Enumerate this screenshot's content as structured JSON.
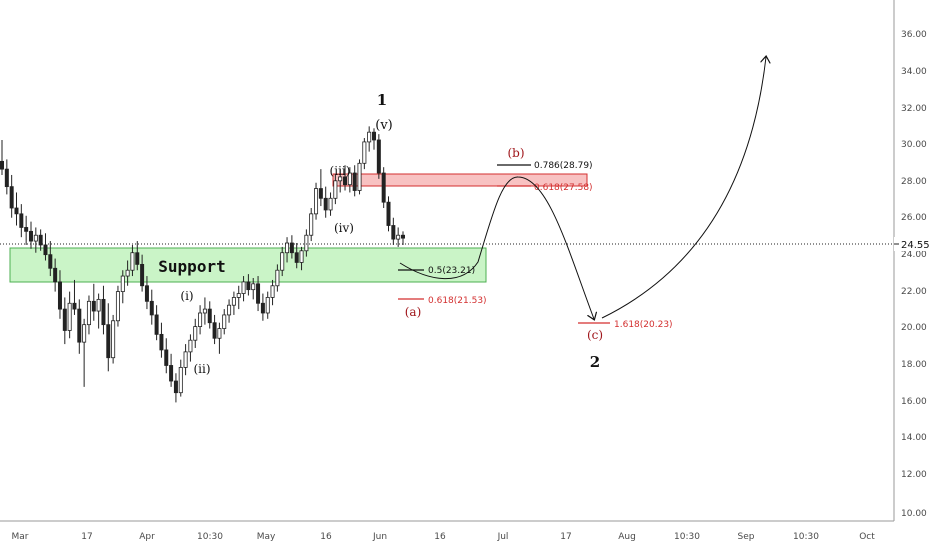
{
  "chart_data": {
    "type": "candlestick",
    "price_axis": {
      "ticks": [
        "36.00",
        "34.00",
        "32.00",
        "30.00",
        "28.00",
        "26.00",
        "24.00",
        "22.00",
        "20.00",
        "18.00",
        "16.00",
        "14.00",
        "12.00",
        "10.00"
      ],
      "ylim": [
        10,
        36.8
      ]
    },
    "time_axis": {
      "ticks": [
        "Mar",
        "17",
        "Apr",
        "10:30",
        "May",
        "16",
        "Jun",
        "16",
        "Jul",
        "17",
        "Aug",
        "10:30",
        "Sep",
        "10:30",
        "Oct"
      ]
    },
    "last_price": {
      "value": 24.55,
      "label": "24.55"
    },
    "support_zone": {
      "label": "Support",
      "from": 22.5,
      "to": 24.2
    },
    "resistance_zone": {
      "from": 27.7,
      "to": 28.35
    },
    "wave_labels": [
      "1",
      "(v)",
      "(iii)",
      "(iv)",
      "(i)",
      "(ii)",
      "(a)",
      "(b)",
      "(c)",
      "2"
    ],
    "fib_levels": [
      {
        "label": "0.786(28.79)",
        "value": 28.79,
        "color": "#111111"
      },
      {
        "label": "0.618(27.58)",
        "value": 27.58,
        "color": "#d32f2f"
      },
      {
        "label": "0.5(23.21)",
        "value": 23.21,
        "color": "#111111"
      },
      {
        "label": "0.618(21.53)",
        "value": 21.53,
        "color": "#d32f2f"
      },
      {
        "label": "1.618(20.23)",
        "value": 20.23,
        "color": "#d32f2f"
      }
    ],
    "candles": [
      {
        "o": 28.5,
        "h": 29.6,
        "l": 27.8,
        "c": 28.1
      },
      {
        "o": 28.1,
        "h": 28.6,
        "l": 26.8,
        "c": 27.2
      },
      {
        "o": 27.2,
        "h": 27.8,
        "l": 25.6,
        "c": 26.1
      },
      {
        "o": 26.1,
        "h": 26.9,
        "l": 25.2,
        "c": 25.8
      },
      {
        "o": 25.8,
        "h": 26.3,
        "l": 24.6,
        "c": 25.1
      },
      {
        "o": 25.1,
        "h": 25.7,
        "l": 24.2,
        "c": 24.9
      },
      {
        "o": 24.9,
        "h": 25.4,
        "l": 24.0,
        "c": 24.4
      },
      {
        "o": 24.4,
        "h": 25.1,
        "l": 23.8,
        "c": 24.7
      },
      {
        "o": 24.7,
        "h": 25.0,
        "l": 23.9,
        "c": 24.2
      },
      {
        "o": 24.2,
        "h": 24.8,
        "l": 23.4,
        "c": 23.7
      },
      {
        "o": 23.7,
        "h": 24.4,
        "l": 22.6,
        "c": 23.0
      },
      {
        "o": 23.0,
        "h": 23.5,
        "l": 21.8,
        "c": 22.3
      },
      {
        "o": 22.3,
        "h": 22.9,
        "l": 20.4,
        "c": 20.9
      },
      {
        "o": 20.9,
        "h": 21.5,
        "l": 19.1,
        "c": 19.8
      },
      {
        "o": 19.8,
        "h": 21.8,
        "l": 19.4,
        "c": 21.2
      },
      {
        "o": 21.2,
        "h": 22.4,
        "l": 20.6,
        "c": 20.9
      },
      {
        "o": 20.9,
        "h": 21.4,
        "l": 18.6,
        "c": 19.2
      },
      {
        "o": 19.2,
        "h": 20.4,
        "l": 16.9,
        "c": 20.1
      },
      {
        "o": 20.1,
        "h": 21.6,
        "l": 19.6,
        "c": 21.3
      },
      {
        "o": 21.3,
        "h": 22.2,
        "l": 20.3,
        "c": 20.8
      },
      {
        "o": 20.8,
        "h": 21.7,
        "l": 19.9,
        "c": 21.4
      },
      {
        "o": 21.4,
        "h": 22.1,
        "l": 19.6,
        "c": 20.1
      },
      {
        "o": 20.1,
        "h": 21.2,
        "l": 17.7,
        "c": 18.4
      },
      {
        "o": 18.4,
        "h": 20.6,
        "l": 18.1,
        "c": 20.3
      },
      {
        "o": 20.3,
        "h": 22.1,
        "l": 20.0,
        "c": 21.8
      },
      {
        "o": 21.8,
        "h": 22.9,
        "l": 21.2,
        "c": 22.6
      },
      {
        "o": 22.6,
        "h": 23.4,
        "l": 22.1,
        "c": 22.9
      },
      {
        "o": 22.9,
        "h": 24.2,
        "l": 22.6,
        "c": 23.8
      },
      {
        "o": 23.8,
        "h": 24.4,
        "l": 22.9,
        "c": 23.2
      },
      {
        "o": 23.2,
        "h": 23.7,
        "l": 21.8,
        "c": 22.1
      },
      {
        "o": 22.1,
        "h": 22.6,
        "l": 20.9,
        "c": 21.3
      },
      {
        "o": 21.3,
        "h": 21.9,
        "l": 20.1,
        "c": 20.6
      },
      {
        "o": 20.6,
        "h": 21.1,
        "l": 19.3,
        "c": 19.6
      },
      {
        "o": 19.6,
        "h": 20.2,
        "l": 18.4,
        "c": 18.8
      },
      {
        "o": 18.8,
        "h": 19.4,
        "l": 17.6,
        "c": 18.0
      },
      {
        "o": 18.0,
        "h": 18.6,
        "l": 16.9,
        "c": 17.2
      },
      {
        "o": 17.2,
        "h": 17.6,
        "l": 16.1,
        "c": 16.6
      },
      {
        "o": 16.6,
        "h": 18.3,
        "l": 16.4,
        "c": 17.9
      },
      {
        "o": 17.9,
        "h": 19.1,
        "l": 17.5,
        "c": 18.7
      },
      {
        "o": 18.7,
        "h": 19.6,
        "l": 18.2,
        "c": 19.3
      },
      {
        "o": 19.3,
        "h": 20.4,
        "l": 18.9,
        "c": 20.0
      },
      {
        "o": 20.0,
        "h": 21.1,
        "l": 19.6,
        "c": 20.7
      },
      {
        "o": 20.7,
        "h": 21.5,
        "l": 20.1,
        "c": 20.9
      },
      {
        "o": 20.9,
        "h": 21.3,
        "l": 19.9,
        "c": 20.2
      },
      {
        "o": 20.2,
        "h": 20.6,
        "l": 19.1,
        "c": 19.4
      },
      {
        "o": 19.4,
        "h": 20.2,
        "l": 18.6,
        "c": 19.9
      },
      {
        "o": 19.9,
        "h": 20.9,
        "l": 19.6,
        "c": 20.6
      },
      {
        "o": 20.6,
        "h": 21.4,
        "l": 20.2,
        "c": 21.1
      },
      {
        "o": 21.1,
        "h": 21.8,
        "l": 20.6,
        "c": 21.5
      },
      {
        "o": 21.5,
        "h": 22.1,
        "l": 20.9,
        "c": 21.7
      },
      {
        "o": 21.7,
        "h": 22.6,
        "l": 21.3,
        "c": 22.3
      },
      {
        "o": 22.3,
        "h": 22.7,
        "l": 21.6,
        "c": 21.9
      },
      {
        "o": 21.9,
        "h": 22.5,
        "l": 21.4,
        "c": 22.2
      },
      {
        "o": 22.2,
        "h": 22.6,
        "l": 20.8,
        "c": 21.2
      },
      {
        "o": 21.2,
        "h": 21.7,
        "l": 20.3,
        "c": 20.7
      },
      {
        "o": 20.7,
        "h": 21.8,
        "l": 20.4,
        "c": 21.5
      },
      {
        "o": 21.5,
        "h": 22.4,
        "l": 21.1,
        "c": 22.1
      },
      {
        "o": 22.1,
        "h": 23.2,
        "l": 21.8,
        "c": 22.9
      },
      {
        "o": 22.9,
        "h": 24.1,
        "l": 22.6,
        "c": 23.8
      },
      {
        "o": 23.8,
        "h": 24.6,
        "l": 23.3,
        "c": 24.3
      },
      {
        "o": 24.3,
        "h": 24.7,
        "l": 23.5,
        "c": 23.8
      },
      {
        "o": 23.8,
        "h": 24.3,
        "l": 23.0,
        "c": 23.3
      },
      {
        "o": 23.3,
        "h": 24.1,
        "l": 22.9,
        "c": 23.9
      },
      {
        "o": 23.9,
        "h": 25.0,
        "l": 23.6,
        "c": 24.7
      },
      {
        "o": 24.7,
        "h": 26.1,
        "l": 24.4,
        "c": 25.8
      },
      {
        "o": 25.8,
        "h": 27.4,
        "l": 25.5,
        "c": 27.1
      },
      {
        "o": 27.1,
        "h": 28.1,
        "l": 26.2,
        "c": 26.6
      },
      {
        "o": 26.6,
        "h": 27.2,
        "l": 25.6,
        "c": 26.0
      },
      {
        "o": 26.0,
        "h": 26.9,
        "l": 25.7,
        "c": 26.6
      },
      {
        "o": 26.6,
        "h": 27.8,
        "l": 26.3,
        "c": 27.5
      },
      {
        "o": 27.5,
        "h": 28.1,
        "l": 26.9,
        "c": 27.7
      },
      {
        "o": 27.7,
        "h": 28.3,
        "l": 27.0,
        "c": 27.3
      },
      {
        "o": 27.3,
        "h": 28.2,
        "l": 26.9,
        "c": 27.9
      },
      {
        "o": 27.9,
        "h": 28.3,
        "l": 26.7,
        "c": 27.0
      },
      {
        "o": 27.0,
        "h": 28.6,
        "l": 26.8,
        "c": 28.4
      },
      {
        "o": 28.4,
        "h": 29.7,
        "l": 28.1,
        "c": 29.5
      },
      {
        "o": 29.5,
        "h": 30.3,
        "l": 29.0,
        "c": 30.0
      },
      {
        "o": 30.0,
        "h": 30.2,
        "l": 29.1,
        "c": 29.6
      },
      {
        "o": 29.6,
        "h": 29.9,
        "l": 27.6,
        "c": 27.9
      },
      {
        "o": 27.9,
        "h": 28.2,
        "l": 26.1,
        "c": 26.4
      },
      {
        "o": 26.4,
        "h": 26.7,
        "l": 24.9,
        "c": 25.2
      },
      {
        "o": 25.2,
        "h": 25.6,
        "l": 24.2,
        "c": 24.5
      },
      {
        "o": 24.5,
        "h": 25.1,
        "l": 24.1,
        "c": 24.7
      },
      {
        "o": 24.7,
        "h": 24.9,
        "l": 24.2,
        "c": 24.55
      }
    ]
  }
}
